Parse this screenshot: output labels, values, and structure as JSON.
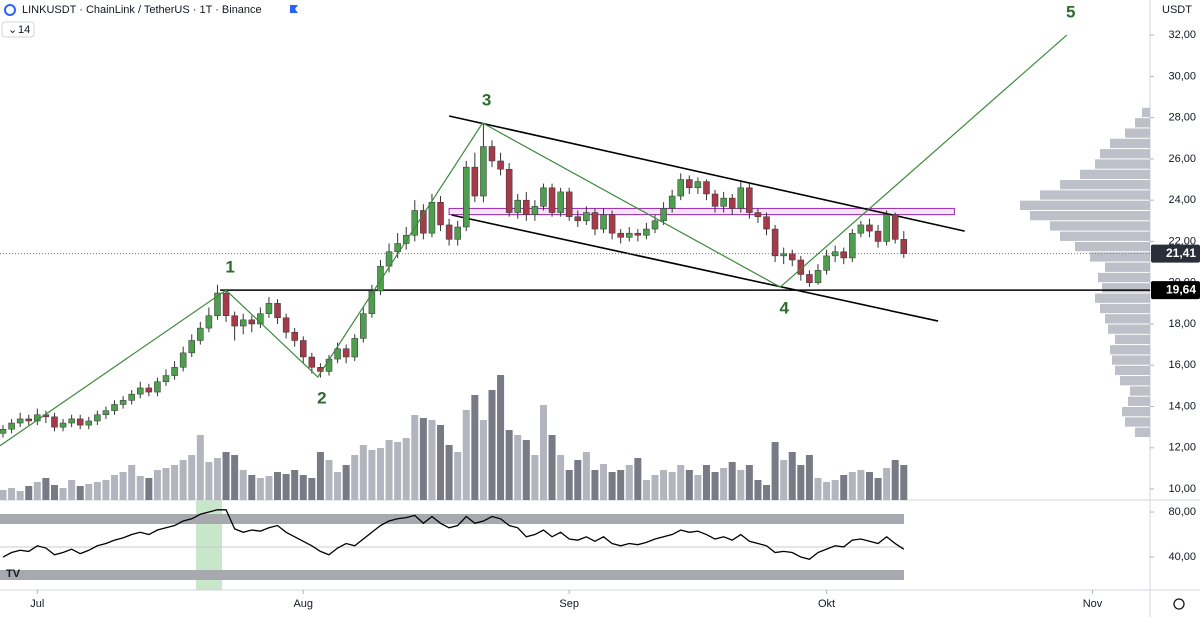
{
  "chart_data": {
    "type": "candlestick",
    "title": "LINKUSDT · ChainLink / TetherUS · 1T · Binance",
    "indicator_length": "14",
    "currency": "USDT",
    "up_color": "#4f9e4f",
    "down_color": "#a53a4a",
    "xlim": [
      -0.35,
      133.7
    ],
    "ylim": [
      9.47,
      33.7
    ],
    "xticks": [
      {
        "value": 4,
        "label": "Jul"
      },
      {
        "value": 35,
        "label": "Aug"
      },
      {
        "value": 66,
        "label": "Sep"
      },
      {
        "value": 96,
        "label": "Okt"
      },
      {
        "value": 127,
        "label": "Nov"
      }
    ],
    "yticks": [
      {
        "value": 10,
        "label": "10,00"
      },
      {
        "value": 12,
        "label": "12,00"
      },
      {
        "value": 14,
        "label": "14,00"
      },
      {
        "value": 16,
        "label": "16,00"
      },
      {
        "value": 18,
        "label": "18,00"
      },
      {
        "value": 20,
        "label": "20,00"
      },
      {
        "value": 22,
        "label": "22,00"
      },
      {
        "value": 24,
        "label": "24,00"
      },
      {
        "value": 26,
        "label": "26,00"
      },
      {
        "value": 28,
        "label": "28,00"
      },
      {
        "value": 30,
        "label": "30,00"
      },
      {
        "value": 32,
        "label": "32,00"
      }
    ],
    "candles": [
      [
        12.7,
        13.1,
        12.5,
        12.9
      ],
      [
        12.9,
        13.4,
        12.7,
        13.2
      ],
      [
        13.2,
        13.7,
        13.0,
        13.4
      ],
      [
        13.4,
        13.6,
        13.1,
        13.3
      ],
      [
        13.3,
        13.9,
        13.1,
        13.6
      ],
      [
        13.6,
        13.8,
        13.2,
        13.5
      ],
      [
        13.5,
        13.7,
        12.8,
        13.0
      ],
      [
        13.0,
        13.4,
        12.8,
        13.2
      ],
      [
        13.2,
        13.6,
        13.0,
        13.4
      ],
      [
        13.4,
        13.6,
        12.9,
        13.1
      ],
      [
        13.1,
        13.5,
        12.9,
        13.3
      ],
      [
        13.3,
        13.8,
        13.1,
        13.6
      ],
      [
        13.6,
        14.0,
        13.4,
        13.8
      ],
      [
        13.8,
        14.3,
        13.6,
        14.1
      ],
      [
        14.1,
        14.5,
        13.9,
        14.3
      ],
      [
        14.3,
        14.8,
        14.1,
        14.6
      ],
      [
        14.6,
        15.2,
        14.4,
        14.9
      ],
      [
        14.9,
        15.1,
        14.5,
        14.7
      ],
      [
        14.7,
        15.4,
        14.5,
        15.2
      ],
      [
        15.2,
        15.8,
        15.0,
        15.5
      ],
      [
        15.5,
        16.2,
        15.3,
        15.9
      ],
      [
        15.9,
        16.9,
        15.7,
        16.6
      ],
      [
        16.6,
        17.5,
        16.4,
        17.2
      ],
      [
        17.2,
        18.1,
        17.0,
        17.8
      ],
      [
        17.8,
        18.8,
        17.6,
        18.4
      ],
      [
        18.4,
        19.9,
        18.2,
        19.5
      ],
      [
        19.5,
        19.7,
        18.1,
        18.4
      ],
      [
        18.4,
        18.6,
        17.2,
        17.9
      ],
      [
        17.9,
        18.5,
        17.5,
        18.2
      ],
      [
        18.2,
        18.4,
        17.6,
        18.0
      ],
      [
        18.0,
        18.8,
        17.8,
        18.5
      ],
      [
        18.5,
        19.3,
        18.3,
        19.0
      ],
      [
        19.0,
        19.2,
        18.0,
        18.3
      ],
      [
        18.3,
        18.5,
        17.3,
        17.6
      ],
      [
        17.6,
        17.8,
        16.9,
        17.2
      ],
      [
        17.2,
        17.4,
        16.1,
        16.4
      ],
      [
        16.4,
        16.6,
        15.6,
        15.9
      ],
      [
        15.9,
        16.1,
        15.4,
        15.7
      ],
      [
        15.7,
        16.5,
        15.5,
        16.3
      ],
      [
        16.3,
        17.1,
        16.1,
        16.8
      ],
      [
        16.8,
        17.0,
        16.1,
        16.4
      ],
      [
        16.4,
        17.5,
        16.2,
        17.3
      ],
      [
        17.3,
        18.8,
        17.1,
        18.5
      ],
      [
        18.5,
        19.9,
        18.3,
        19.6
      ],
      [
        19.6,
        21.1,
        19.4,
        20.8
      ],
      [
        20.8,
        21.9,
        20.5,
        21.5
      ],
      [
        21.5,
        22.4,
        21.2,
        21.9
      ],
      [
        21.9,
        22.7,
        21.6,
        22.3
      ],
      [
        22.3,
        24.0,
        22.0,
        23.5
      ],
      [
        23.5,
        23.8,
        22.1,
        22.4
      ],
      [
        22.4,
        24.3,
        22.2,
        23.9
      ],
      [
        23.9,
        24.2,
        22.5,
        22.8
      ],
      [
        22.8,
        23.1,
        21.8,
        22.1
      ],
      [
        22.1,
        23.0,
        21.8,
        22.7
      ],
      [
        22.7,
        25.9,
        22.5,
        25.6
      ],
      [
        25.6,
        26.3,
        23.9,
        24.2
      ],
      [
        24.2,
        27.7,
        23.9,
        26.6
      ],
      [
        26.6,
        26.9,
        25.6,
        25.9
      ],
      [
        25.9,
        26.3,
        25.2,
        25.5
      ],
      [
        25.5,
        25.8,
        23.2,
        23.4
      ],
      [
        23.4,
        24.3,
        23.1,
        24.0
      ],
      [
        24.0,
        24.4,
        23.0,
        23.3
      ],
      [
        23.3,
        24.0,
        23.0,
        23.7
      ],
      [
        23.7,
        24.8,
        23.5,
        24.6
      ],
      [
        24.6,
        24.8,
        23.2,
        23.4
      ],
      [
        23.4,
        24.6,
        23.2,
        24.4
      ],
      [
        24.4,
        24.6,
        23.0,
        23.2
      ],
      [
        23.2,
        23.5,
        22.7,
        23.0
      ],
      [
        23.0,
        23.7,
        22.8,
        23.4
      ],
      [
        23.4,
        23.6,
        22.3,
        22.6
      ],
      [
        22.6,
        23.6,
        22.4,
        23.3
      ],
      [
        23.3,
        23.5,
        22.1,
        22.4
      ],
      [
        22.4,
        22.6,
        21.9,
        22.2
      ],
      [
        22.2,
        22.7,
        22.0,
        22.4
      ],
      [
        22.4,
        22.6,
        22.0,
        22.3
      ],
      [
        22.3,
        22.9,
        22.1,
        22.6
      ],
      [
        22.6,
        23.3,
        22.4,
        23.0
      ],
      [
        23.0,
        23.9,
        22.8,
        23.6
      ],
      [
        23.6,
        24.5,
        23.4,
        24.2
      ],
      [
        24.2,
        25.3,
        24.0,
        25.0
      ],
      [
        25.0,
        25.2,
        24.3,
        24.6
      ],
      [
        24.6,
        25.1,
        24.3,
        24.9
      ],
      [
        24.9,
        25.0,
        24.0,
        24.3
      ],
      [
        24.3,
        24.5,
        23.4,
        23.7
      ],
      [
        23.7,
        24.4,
        23.4,
        24.1
      ],
      [
        24.1,
        24.3,
        23.3,
        23.6
      ],
      [
        23.6,
        24.9,
        23.4,
        24.6
      ],
      [
        24.6,
        24.8,
        23.1,
        23.4
      ],
      [
        23.4,
        23.6,
        22.9,
        23.2
      ],
      [
        23.2,
        23.4,
        22.3,
        22.6
      ],
      [
        22.6,
        22.8,
        21.0,
        21.3
      ],
      [
        21.3,
        21.7,
        20.9,
        21.4
      ],
      [
        21.4,
        21.6,
        20.8,
        21.1
      ],
      [
        21.1,
        21.3,
        20.1,
        20.4
      ],
      [
        20.4,
        20.6,
        19.8,
        20.0
      ],
      [
        20.0,
        20.9,
        19.9,
        20.6
      ],
      [
        20.6,
        21.6,
        20.4,
        21.3
      ],
      [
        21.3,
        21.8,
        21.0,
        21.5
      ],
      [
        21.5,
        21.7,
        20.9,
        21.2
      ],
      [
        21.2,
        22.6,
        21.0,
        22.4
      ],
      [
        22.4,
        23.0,
        22.2,
        22.8
      ],
      [
        22.8,
        23.1,
        22.2,
        22.5
      ],
      [
        22.5,
        22.8,
        21.7,
        22.0
      ],
      [
        22.0,
        23.5,
        21.8,
        23.3
      ],
      [
        23.3,
        23.4,
        21.9,
        22.1
      ],
      [
        22.1,
        22.5,
        21.2,
        21.41
      ]
    ],
    "volume": {
      "up_color": "#b2b5be",
      "down_color": "#787b86",
      "values": [
        10,
        12,
        9,
        14,
        18,
        22,
        15,
        12,
        20,
        14,
        16,
        18,
        20,
        25,
        28,
        35,
        24,
        22,
        30,
        32,
        35,
        40,
        45,
        65,
        38,
        42,
        48,
        45,
        30,
        25,
        22,
        24,
        28,
        26,
        30,
        25,
        22,
        48,
        40,
        28,
        35,
        45,
        55,
        50,
        52,
        60,
        58,
        62,
        85,
        82,
        80,
        75,
        55,
        48,
        90,
        105,
        80,
        110,
        125,
        70,
        65,
        60,
        45,
        95,
        65,
        45,
        30,
        40,
        48,
        30,
        36,
        28,
        30,
        35,
        42,
        20,
        25,
        30,
        28,
        35,
        30,
        25,
        35,
        28,
        32,
        38,
        30,
        35,
        20,
        15,
        58,
        40,
        48,
        35,
        45,
        22,
        18,
        20,
        25,
        28,
        30,
        28,
        22,
        32,
        40,
        35
      ]
    },
    "volume_profile": {
      "color": "#b2b5be",
      "bins": [
        12.5,
        13,
        13.5,
        14,
        14.5,
        15,
        15.5,
        16,
        16.5,
        17,
        17.5,
        18,
        18.5,
        19,
        19.5,
        20,
        20.5,
        21,
        21.5,
        22,
        22.5,
        23,
        23.5,
        24,
        24.5,
        25,
        25.5,
        26,
        26.5,
        27,
        27.5,
        28,
        28.5
      ],
      "values": [
        15,
        25,
        28,
        22,
        20,
        30,
        35,
        38,
        40,
        35,
        42,
        45,
        50,
        55,
        48,
        52,
        45,
        60,
        75,
        90,
        100,
        120,
        130,
        110,
        90,
        70,
        55,
        50,
        40,
        25,
        15,
        8
      ]
    },
    "oscillator": {
      "color": "#000000",
      "ylim": [
        10.7,
        90.7
      ],
      "yticks": [
        {
          "value": 80,
          "label": "80,00"
        },
        {
          "value": 40,
          "label": "40,00"
        }
      ],
      "values": [
        40,
        44,
        46,
        45,
        50,
        48,
        42,
        44,
        47,
        43,
        46,
        50,
        52,
        55,
        57,
        60,
        62,
        60,
        64,
        66,
        68,
        72,
        74,
        78,
        80,
        82,
        82,
        65,
        62,
        64,
        63,
        66,
        68,
        62,
        58,
        54,
        50,
        45,
        42,
        48,
        52,
        50,
        56,
        62,
        68,
        72,
        74,
        75,
        77,
        70,
        76,
        70,
        66,
        68,
        76,
        70,
        72,
        76,
        74,
        68,
        66,
        58,
        60,
        64,
        58,
        62,
        56,
        55,
        58,
        54,
        58,
        52,
        50,
        52,
        51,
        53,
        56,
        58,
        60,
        64,
        62,
        63,
        60,
        56,
        58,
        55,
        60,
        54,
        52,
        50,
        44,
        45,
        44,
        40,
        38,
        44,
        47,
        50,
        49,
        55,
        56,
        54,
        52,
        58,
        52,
        47
      ]
    },
    "price_labels": [
      {
        "value": 21.41,
        "label": "21,41",
        "color": "#2a2e39"
      },
      {
        "value": 19.64,
        "label": "19,64",
        "color": "#000000"
      }
    ],
    "lines": [
      {
        "from": [
          25.3,
          19.64
        ],
        "to": [
          133.7,
          19.64
        ]
      },
      {
        "from": [
          52,
          28.08
        ],
        "to": [
          112.1,
          22.5
        ]
      },
      {
        "from": [
          52.3,
          23.28
        ],
        "to": [
          109,
          18.14
        ]
      }
    ],
    "zone": {
      "x": [
        52,
        110.9
      ],
      "y": [
        23.3,
        23.6
      ],
      "color": "#9c27b0"
    },
    "waves": {
      "color": "#3c8a3c",
      "label_color": "#2e6b2e",
      "x": [
        -0.35,
        26,
        36.7,
        55.9,
        90.6,
        124
      ],
      "y": [
        12.1,
        19.64,
        15.43,
        27.74,
        19.79,
        32.0
      ],
      "labels": [
        null,
        "1",
        "2",
        "3",
        "4",
        "5"
      ]
    }
  }
}
